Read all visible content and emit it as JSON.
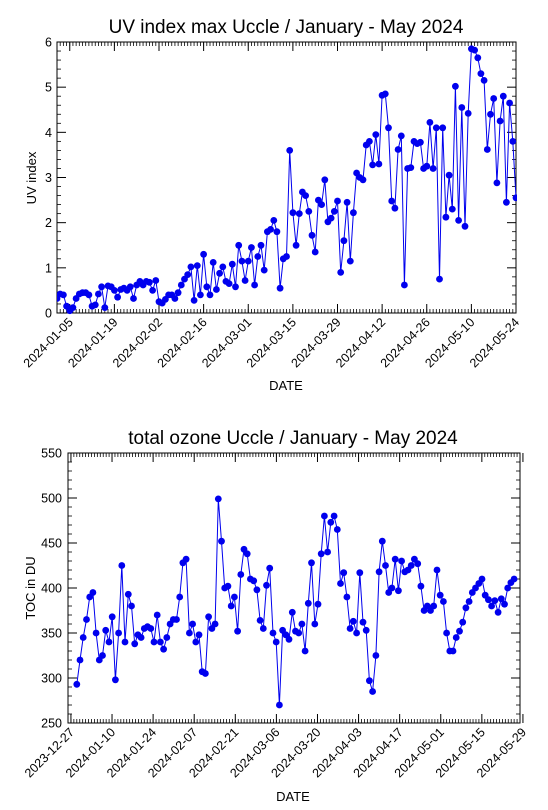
{
  "chart_data": [
    {
      "type": "line",
      "title": "UV index max Uccle / January - May 2024",
      "xlabel": "DATE",
      "ylabel": "UV index",
      "ylim": [
        0,
        6
      ],
      "yticks": [
        0,
        1,
        2,
        3,
        4,
        5,
        6
      ],
      "xlim": [
        "2024-01-01",
        "2024-05-24"
      ],
      "xticks": [
        "2024-01-05",
        "2024-01-19",
        "2024-02-02",
        "2024-02-16",
        "2024-03-01",
        "2024-03-15",
        "2024-03-29",
        "2024-04-12",
        "2024-04-26",
        "2024-05-10",
        "2024-05-24"
      ],
      "color": "#0000ee",
      "series": [
        {
          "values": [
            0.32,
            0.42,
            0.4,
            0.15,
            0.05,
            0.12,
            0.32,
            0.42,
            0.45,
            0.45,
            0.4,
            0.15,
            0.18,
            0.42,
            0.58,
            0.12,
            0.6,
            0.58,
            0.5,
            0.35,
            0.52,
            0.55,
            0.5,
            0.58,
            0.32,
            0.62,
            0.7,
            0.62,
            0.7,
            0.68,
            0.5,
            0.72,
            0.25,
            0.22,
            0.3,
            0.4,
            0.4,
            0.32,
            0.45,
            0.62,
            0.75,
            0.85,
            1.02,
            0.28,
            1.05,
            0.4,
            1.3,
            0.58,
            0.4,
            1.12,
            0.52,
            0.88,
            1.02,
            0.7,
            0.65,
            1.08,
            0.58,
            1.5,
            1.15,
            0.72,
            1.15,
            1.45,
            0.62,
            1.25,
            1.5,
            0.95,
            1.8,
            1.85,
            2.05,
            1.8,
            0.55,
            1.2,
            1.25,
            3.6,
            2.22,
            1.5,
            2.2,
            2.68,
            2.6,
            2.25,
            1.72,
            1.35,
            2.5,
            2.4,
            2.95,
            2.02,
            2.1,
            2.25,
            2.48,
            0.9,
            1.6,
            2.45,
            1.15,
            2.22,
            3.1,
            3.0,
            2.95,
            3.72,
            3.8,
            3.28,
            3.95,
            3.3,
            4.82,
            4.85,
            4.1,
            2.48,
            2.32,
            3.62,
            3.92,
            0.62,
            3.2,
            3.22,
            3.8,
            3.75,
            3.78,
            3.2,
            3.25,
            4.22,
            3.2,
            4.1,
            0.75,
            4.1,
            2.12,
            3.05,
            2.3,
            5.02,
            2.05,
            4.55,
            1.92,
            4.42,
            5.85,
            5.82,
            5.65,
            5.3,
            5.15,
            3.62,
            4.4,
            4.75,
            2.88,
            4.25,
            4.8,
            2.45,
            4.65,
            3.8,
            2.55
          ]
        }
      ]
    },
    {
      "type": "line",
      "title": "total ozone Uccle / January - May 2024",
      "xlabel": "DATE",
      "ylabel": "TOC in DU",
      "ylim": [
        250,
        550
      ],
      "yticks": [
        250,
        300,
        350,
        400,
        450,
        500,
        550
      ],
      "xlim": [
        "2023-12-26",
        "2024-05-28"
      ],
      "xticks": [
        "2023-12-27",
        "2024-01-10",
        "2024-01-24",
        "2024-02-07",
        "2024-02-21",
        "2024-03-06",
        "2024-03-20",
        "2024-04-03",
        "2024-04-17",
        "2024-05-01",
        "2024-05-15",
        "2024-05-29"
      ],
      "color": "#0000ee",
      "series": [
        {
          "values": [
            293,
            320,
            345,
            365,
            390,
            395,
            350,
            320,
            325,
            353,
            340,
            368,
            298,
            350,
            425,
            340,
            393,
            380,
            338,
            348,
            345,
            355,
            357,
            355,
            340,
            370,
            340,
            332,
            345,
            360,
            365,
            365,
            390,
            428,
            432,
            350,
            360,
            340,
            348,
            307,
            305,
            368,
            355,
            360,
            499,
            452,
            400,
            402,
            380,
            390,
            352,
            415,
            443,
            438,
            410,
            408,
            398,
            364,
            355,
            403,
            422,
            350,
            340,
            270,
            353,
            348,
            343,
            373,
            352,
            350,
            360,
            330,
            383,
            428,
            360,
            382,
            438,
            480,
            440,
            473,
            480,
            465,
            405,
            417,
            390,
            355,
            363,
            350,
            417,
            362,
            353,
            297,
            285,
            325,
            418,
            452,
            425,
            395,
            400,
            432,
            397,
            430,
            418,
            420,
            425,
            432,
            427,
            402,
            375,
            380,
            375,
            380,
            420,
            392,
            385,
            350,
            330,
            330,
            345,
            352,
            362,
            378,
            385,
            395,
            400,
            405,
            410,
            392,
            387,
            380,
            386,
            373,
            388,
            382,
            400,
            406,
            410
          ]
        }
      ]
    }
  ]
}
